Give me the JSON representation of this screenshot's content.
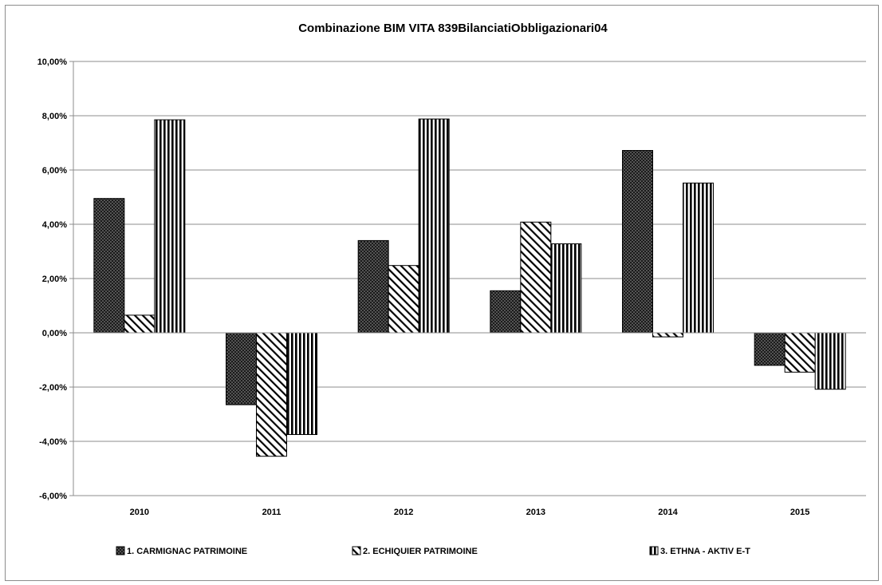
{
  "chart_data": {
    "type": "bar",
    "title": "Combinazione BIM VITA 839BilanciatiObbligazionari04",
    "xlabel": "",
    "ylabel": "",
    "categories": [
      "2010",
      "2011",
      "2012",
      "2013",
      "2014",
      "2015"
    ],
    "yticks": [
      "10,00%",
      "8,00%",
      "6,00%",
      "4,00%",
      "2,00%",
      "0,00%",
      "-2,00%",
      "-4,00%",
      "-6,00%"
    ],
    "ylim": [
      -6,
      10
    ],
    "grid": true,
    "legend_position": "bottom",
    "series": [
      {
        "name": "1. CARMIGNAC PATRIMOINE",
        "pattern": "dots",
        "values": [
          4.95,
          -2.65,
          3.4,
          1.55,
          6.72,
          -1.2
        ]
      },
      {
        "name": "2. ECHIQUIER PATRIMOINE",
        "pattern": "diagonal",
        "values": [
          0.65,
          -4.55,
          2.48,
          4.08,
          -0.15,
          -1.45
        ]
      },
      {
        "name": "3. ETHNA - AKTIV E-T",
        "pattern": "vertical",
        "values": [
          7.85,
          -3.75,
          7.88,
          3.28,
          5.52,
          -2.08
        ]
      }
    ]
  }
}
